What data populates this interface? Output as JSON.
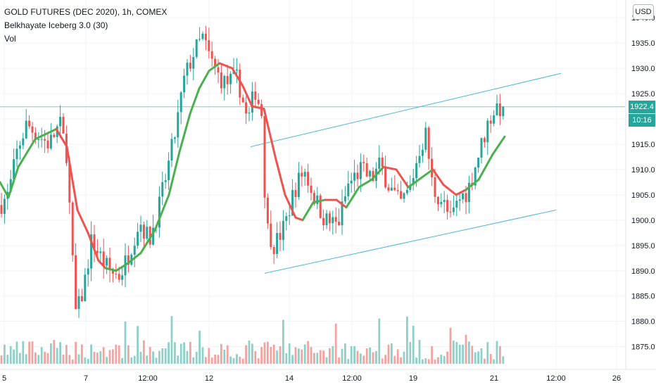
{
  "legend": {
    "symbol": "GOLD FUTURES (DEC 2020), 1h, COMEX",
    "indicator": "Belkhayate Iceberg 3.0 (30)",
    "volume": "Vol"
  },
  "currency_button": "USD",
  "last_price": {
    "value": "1922.4",
    "countdown": "10:16",
    "price": 1922.4
  },
  "colors": {
    "up": "#26a69a",
    "down": "#ef5350",
    "vol_up": "#8fd0c9",
    "vol_down": "#f5a3a1",
    "ma_up": "#4caf50",
    "ma_down": "#ef5350",
    "channel": "#4bb7d6",
    "price_line": "#80cbc4"
  },
  "chart_data": {
    "type": "candlestick",
    "y_ticks": [
      "1940.0",
      "1935.0",
      "1930.0",
      "1925.0",
      "1920.0",
      "1915.0",
      "1910.0",
      "1905.0",
      "1900.0",
      "1895.0",
      "1890.0",
      "1885.0",
      "1880.0",
      "1875.0"
    ],
    "y_tick_values": [
      1940,
      1935,
      1930,
      1925,
      1920,
      1915,
      1910,
      1905,
      1900,
      1895,
      1890,
      1885,
      1880,
      1875
    ],
    "x_ticks": [
      "5",
      "7",
      "12:00",
      "12",
      "14",
      "12:00",
      "19",
      "21",
      "12:00",
      "26"
    ],
    "ylim": [
      1870.5,
      1943.5
    ],
    "trend_channel": {
      "upper": [
        [
          0.0,
          1914.5
        ],
        [
          1.0,
          1929.0
        ]
      ],
      "lower": [
        [
          0.0,
          1889.5
        ],
        [
          1.0,
          1902.0
        ]
      ]
    },
    "ma_keypoints": [
      [
        0,
        1907.5,
        "u"
      ],
      [
        12,
        1904.5,
        "u"
      ],
      [
        26,
        1910.5,
        "u"
      ],
      [
        50,
        1916.0,
        "u"
      ],
      [
        80,
        1918.0,
        "d"
      ],
      [
        95,
        1914.5,
        "d"
      ],
      [
        110,
        1902.0,
        "d"
      ],
      [
        125,
        1897.5,
        "d"
      ],
      [
        140,
        1892.0,
        "d"
      ],
      [
        150,
        1890.5,
        "u"
      ],
      [
        165,
        1890.0,
        "u"
      ],
      [
        182,
        1891.5,
        "u"
      ],
      [
        200,
        1893.5,
        "u"
      ],
      [
        220,
        1898.0,
        "u"
      ],
      [
        240,
        1905.0,
        "u"
      ],
      [
        255,
        1913.5,
        "u"
      ],
      [
        270,
        1921.0,
        "u"
      ],
      [
        283,
        1926.0,
        "u"
      ],
      [
        297,
        1929.5,
        "u"
      ],
      [
        312,
        1931.0,
        "d"
      ],
      [
        330,
        1930.0,
        "d"
      ],
      [
        345,
        1926.5,
        "d"
      ],
      [
        358,
        1922.5,
        "d"
      ],
      [
        375,
        1922.0,
        "d"
      ],
      [
        392,
        1912.0,
        "d"
      ],
      [
        405,
        1905.0,
        "d"
      ],
      [
        420,
        1900.5,
        "d"
      ],
      [
        430,
        1900.0,
        "u"
      ],
      [
        445,
        1903.5,
        "u"
      ],
      [
        462,
        1904.0,
        "d"
      ],
      [
        478,
        1904.0,
        "d"
      ],
      [
        492,
        1902.5,
        "u"
      ],
      [
        510,
        1906.5,
        "u"
      ],
      [
        528,
        1908.0,
        "u"
      ],
      [
        545,
        1910.5,
        "d"
      ],
      [
        563,
        1910.0,
        "d"
      ],
      [
        580,
        1906.5,
        "u"
      ],
      [
        600,
        1908.5,
        "u"
      ],
      [
        615,
        1910.0,
        "d"
      ],
      [
        630,
        1907.0,
        "d"
      ],
      [
        648,
        1905.0,
        "d"
      ],
      [
        662,
        1906.0,
        "u"
      ],
      [
        680,
        1908.0,
        "u"
      ],
      [
        700,
        1913.0,
        "u"
      ],
      [
        717,
        1916.5,
        "u"
      ]
    ],
    "price_keypoints": [
      [
        0,
        1903
      ],
      [
        12,
        1905
      ],
      [
        25,
        1914
      ],
      [
        38,
        1919
      ],
      [
        52,
        1917
      ],
      [
        70,
        1915
      ],
      [
        85,
        1919
      ],
      [
        95,
        1913
      ],
      [
        102,
        1894
      ],
      [
        108,
        1881
      ],
      [
        118,
        1886
      ],
      [
        130,
        1896
      ],
      [
        142,
        1893
      ],
      [
        155,
        1890
      ],
      [
        170,
        1889
      ],
      [
        182,
        1893
      ],
      [
        198,
        1900
      ],
      [
        212,
        1896
      ],
      [
        225,
        1902
      ],
      [
        238,
        1910
      ],
      [
        250,
        1918
      ],
      [
        262,
        1928
      ],
      [
        275,
        1933
      ],
      [
        288,
        1936
      ],
      [
        298,
        1932
      ],
      [
        308,
        1929
      ],
      [
        320,
        1927
      ],
      [
        338,
        1928
      ],
      [
        352,
        1919
      ],
      [
        362,
        1926
      ],
      [
        372,
        1921
      ],
      [
        378,
        1899
      ],
      [
        390,
        1895
      ],
      [
        405,
        1899
      ],
      [
        418,
        1906
      ],
      [
        432,
        1910
      ],
      [
        445,
        1905
      ],
      [
        462,
        1900
      ],
      [
        480,
        1899
      ],
      [
        495,
        1907
      ],
      [
        512,
        1910
      ],
      [
        528,
        1908
      ],
      [
        540,
        1911
      ],
      [
        552,
        1907
      ],
      [
        568,
        1903
      ],
      [
        582,
        1906
      ],
      [
        596,
        1914
      ],
      [
        605,
        1917
      ],
      [
        615,
        1906
      ],
      [
        628,
        1904
      ],
      [
        640,
        1900
      ],
      [
        652,
        1904
      ],
      [
        665,
        1906
      ],
      [
        680,
        1913
      ],
      [
        695,
        1920
      ],
      [
        708,
        1923
      ],
      [
        717,
        1920
      ]
    ]
  }
}
